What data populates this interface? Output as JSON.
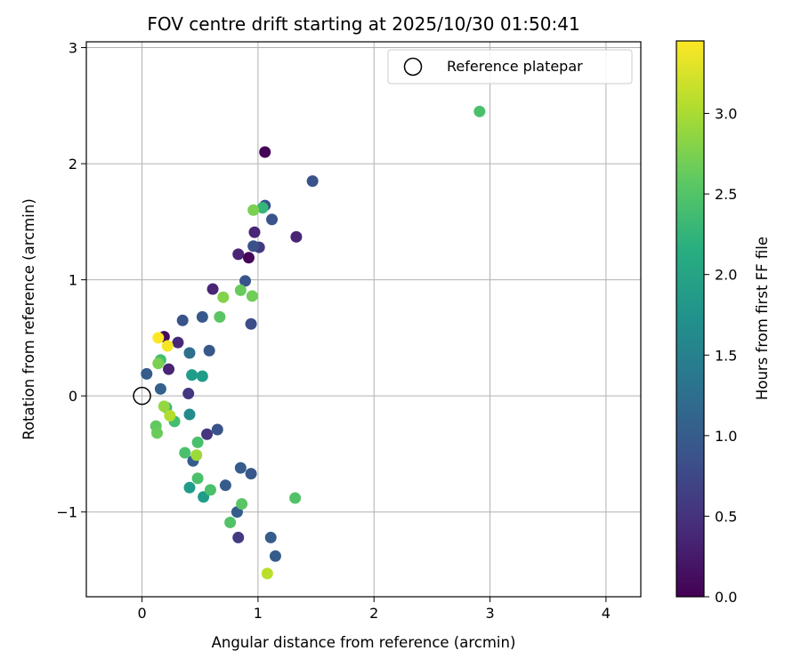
{
  "chart_data": {
    "type": "scatter",
    "title": "FOV centre drift starting at 2025/10/30 01:50:41",
    "xlabel": "Angular distance from reference (arcmin)",
    "ylabel": "Rotation from reference (arcmin)",
    "xlim": [
      -0.48,
      4.3
    ],
    "ylim": [
      -1.73,
      3.05
    ],
    "xticks": [
      0,
      1,
      2,
      3,
      4
    ],
    "yticks": [
      -1,
      0,
      1,
      2,
      3
    ],
    "xtick_labels": [
      "0",
      "1",
      "2",
      "3",
      "4"
    ],
    "ytick_labels": [
      "−1",
      "0",
      "1",
      "2",
      "3"
    ],
    "grid": true,
    "legend": {
      "placement": "top-right",
      "entries": [
        {
          "label": "Reference platepar",
          "marker": "open-circle"
        }
      ]
    },
    "reference_point": {
      "x": 0,
      "y": 0
    },
    "colorbar": {
      "label": "Hours from first FF file",
      "min": 0.0,
      "max": 3.45,
      "ticks": [
        0.0,
        0.5,
        1.0,
        1.5,
        2.0,
        2.5,
        3.0
      ],
      "tick_labels": [
        "0.0",
        "0.5",
        "1.0",
        "1.5",
        "2.0",
        "2.5",
        "3.0"
      ],
      "colormap": "viridis"
    },
    "points": [
      {
        "x": 1.06,
        "y": 2.1,
        "h": 0.02
      },
      {
        "x": 0.92,
        "y": 1.19,
        "h": 0.05
      },
      {
        "x": 0.19,
        "y": 0.51,
        "h": 0.1
      },
      {
        "x": 0.23,
        "y": 0.23,
        "h": 0.35
      },
      {
        "x": 0.97,
        "y": 1.41,
        "h": 0.35
      },
      {
        "x": 1.33,
        "y": 1.37,
        "h": 0.35
      },
      {
        "x": 0.83,
        "y": 1.22,
        "h": 0.35
      },
      {
        "x": 0.61,
        "y": 0.92,
        "h": 0.35
      },
      {
        "x": 0.31,
        "y": 0.46,
        "h": 0.4
      },
      {
        "x": 0.4,
        "y": 0.02,
        "h": 0.55
      },
      {
        "x": 0.56,
        "y": -0.33,
        "h": 0.55
      },
      {
        "x": 1.01,
        "y": 1.28,
        "h": 0.6
      },
      {
        "x": 0.83,
        "y": -1.22,
        "h": 0.6
      },
      {
        "x": 1.06,
        "y": 1.64,
        "h": 0.85
      },
      {
        "x": 1.47,
        "y": 1.85,
        "h": 0.9
      },
      {
        "x": 1.12,
        "y": 1.52,
        "h": 0.9
      },
      {
        "x": 0.96,
        "y": 1.29,
        "h": 0.85
      },
      {
        "x": 0.89,
        "y": 0.99,
        "h": 0.9
      },
      {
        "x": 0.94,
        "y": 0.62,
        "h": 0.8
      },
      {
        "x": 0.35,
        "y": 0.65,
        "h": 0.9
      },
      {
        "x": 0.52,
        "y": 0.68,
        "h": 0.95
      },
      {
        "x": 0.58,
        "y": 0.39,
        "h": 0.95
      },
      {
        "x": 0.04,
        "y": 0.19,
        "h": 1.0
      },
      {
        "x": 0.16,
        "y": 0.06,
        "h": 1.05
      },
      {
        "x": 0.65,
        "y": -0.29,
        "h": 0.9
      },
      {
        "x": 0.44,
        "y": -0.56,
        "h": 1.0
      },
      {
        "x": 0.72,
        "y": -0.77,
        "h": 1.0
      },
      {
        "x": 0.85,
        "y": -0.62,
        "h": 1.0
      },
      {
        "x": 0.94,
        "y": -0.67,
        "h": 0.95
      },
      {
        "x": 0.82,
        "y": -1.0,
        "h": 1.0
      },
      {
        "x": 1.11,
        "y": -1.22,
        "h": 1.0
      },
      {
        "x": 1.15,
        "y": -1.38,
        "h": 1.0
      },
      {
        "x": 0.41,
        "y": 0.37,
        "h": 1.25
      },
      {
        "x": 0.41,
        "y": -0.16,
        "h": 1.65
      },
      {
        "x": 0.43,
        "y": 0.18,
        "h": 1.9
      },
      {
        "x": 0.52,
        "y": 0.17,
        "h": 1.9
      },
      {
        "x": 0.41,
        "y": -0.79,
        "h": 1.9
      },
      {
        "x": 0.53,
        "y": -0.87,
        "h": 1.9
      },
      {
        "x": 0.16,
        "y": 0.31,
        "h": 2.4
      },
      {
        "x": 1.04,
        "y": 1.62,
        "h": 2.3
      },
      {
        "x": 0.21,
        "y": -0.1,
        "h": 2.35
      },
      {
        "x": 0.28,
        "y": -0.22,
        "h": 2.4
      },
      {
        "x": 0.48,
        "y": -0.4,
        "h": 2.45
      },
      {
        "x": 0.37,
        "y": -0.49,
        "h": 2.45
      },
      {
        "x": 0.48,
        "y": -0.71,
        "h": 2.45
      },
      {
        "x": 0.59,
        "y": -0.81,
        "h": 2.45
      },
      {
        "x": 0.76,
        "y": -1.09,
        "h": 2.5
      },
      {
        "x": 0.86,
        "y": -0.93,
        "h": 2.55
      },
      {
        "x": 1.32,
        "y": -0.88,
        "h": 2.5
      },
      {
        "x": 2.91,
        "y": 2.45,
        "h": 2.45
      },
      {
        "x": 0.67,
        "y": 0.68,
        "h": 2.55
      },
      {
        "x": 0.96,
        "y": 1.6,
        "h": 2.75
      },
      {
        "x": 0.85,
        "y": 0.91,
        "h": 2.65
      },
      {
        "x": 0.95,
        "y": 0.86,
        "h": 2.7
      },
      {
        "x": 0.7,
        "y": 0.85,
        "h": 2.8
      },
      {
        "x": 0.14,
        "y": 0.28,
        "h": 2.75
      },
      {
        "x": 0.12,
        "y": -0.26,
        "h": 2.6
      },
      {
        "x": 0.13,
        "y": -0.32,
        "h": 2.65
      },
      {
        "x": 0.19,
        "y": -0.09,
        "h": 2.9
      },
      {
        "x": 0.47,
        "y": -0.51,
        "h": 2.95
      },
      {
        "x": 0.24,
        "y": -0.17,
        "h": 3.05
      },
      {
        "x": 1.08,
        "y": -1.53,
        "h": 3.1
      },
      {
        "x": 0.14,
        "y": 0.5,
        "h": 3.45
      },
      {
        "x": 0.22,
        "y": 0.43,
        "h": 3.4
      }
    ]
  }
}
